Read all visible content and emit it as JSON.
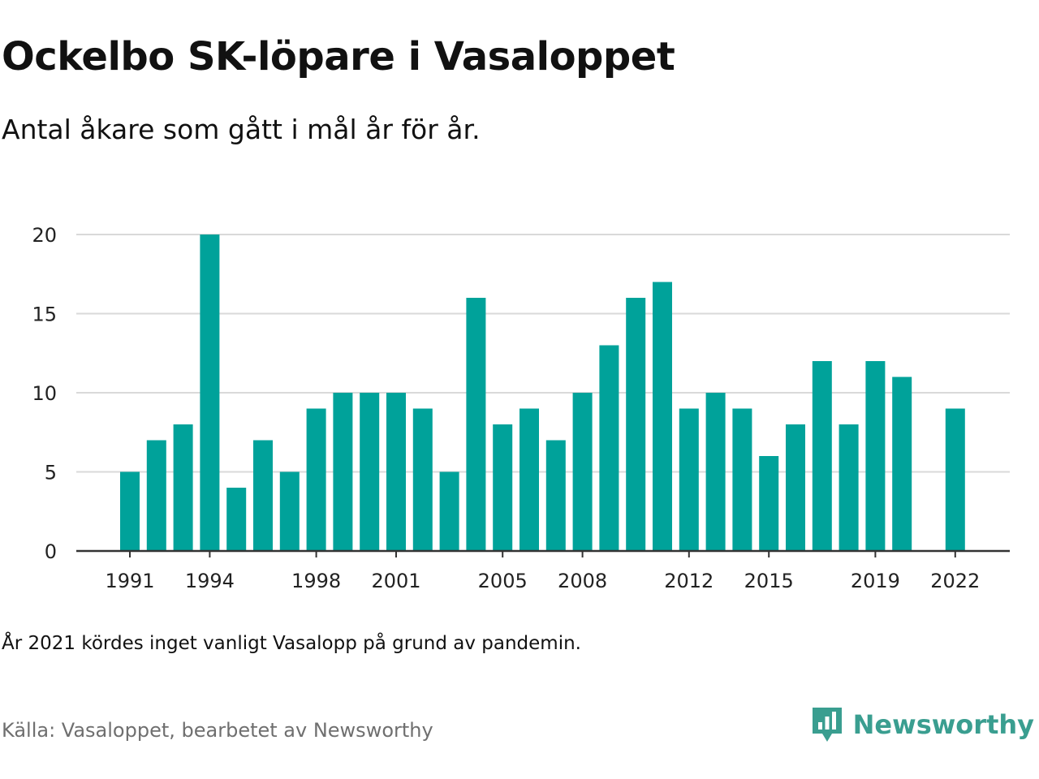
{
  "header": {
    "title": "Ockelbo SK-löpare i Vasaloppet",
    "subtitle": "Antal åkare som gått i mål år för år."
  },
  "footer": {
    "note": "År 2021 kördes inget vanligt Vasalopp på grund av pandemin.",
    "source": "Källa: Vasaloppet, bearbetet av Newsworthy",
    "brand": "Newsworthy",
    "brand_icon": "newsworthy-logo-icon"
  },
  "colors": {
    "bar": "#00a29a",
    "grid": "#d9d9d9",
    "axis": "#333333",
    "brand": "#3a9e90"
  },
  "chart_data": {
    "type": "bar",
    "title": "Ockelbo SK-löpare i Vasaloppet",
    "subtitle": "Antal åkare som gått i mål år för år.",
    "xlabel": "",
    "ylabel": "",
    "ylim": [
      0,
      20
    ],
    "yticks": [
      0,
      5,
      10,
      15,
      20
    ],
    "xtick_labels": [
      "1991",
      "1994",
      "1998",
      "2001",
      "2005",
      "2008",
      "2012",
      "2015",
      "2019",
      "2022"
    ],
    "grid": true,
    "categories": [
      1991,
      1992,
      1993,
      1994,
      1995,
      1996,
      1997,
      1998,
      1999,
      2000,
      2001,
      2002,
      2003,
      2004,
      2005,
      2006,
      2007,
      2008,
      2009,
      2010,
      2011,
      2012,
      2013,
      2014,
      2015,
      2016,
      2017,
      2018,
      2019,
      2020,
      2021,
      2022
    ],
    "values": [
      5,
      7,
      8,
      20,
      4,
      7,
      5,
      9,
      10,
      10,
      10,
      9,
      5,
      16,
      8,
      9,
      7,
      10,
      13,
      16,
      17,
      9,
      10,
      9,
      6,
      8,
      12,
      8,
      12,
      11,
      null,
      9
    ]
  }
}
